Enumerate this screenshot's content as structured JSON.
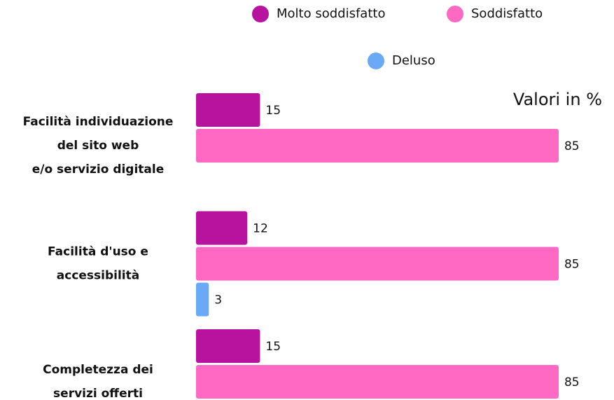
{
  "chart_data": {
    "type": "bar",
    "orientation": "horizontal",
    "annotation": "Valori in %",
    "categories": [
      [
        "Facilità individuazione",
        "del sito web",
        "e/o servizio digitale"
      ],
      [
        "Facilità d'uso e",
        "accessibilità"
      ],
      [
        "Completezza dei",
        "servizi offerti"
      ]
    ],
    "series": [
      {
        "name": "Molto soddisfatto",
        "color": "#b8139e",
        "values": [
          15,
          12,
          15
        ]
      },
      {
        "name": "Soddisfatto",
        "color": "#ff69c4",
        "values": [
          85,
          85,
          85
        ]
      },
      {
        "name": "Deluso",
        "color": "#6aa9f5",
        "values": [
          null,
          3,
          null
        ]
      }
    ],
    "xlim": [
      0,
      100
    ]
  }
}
